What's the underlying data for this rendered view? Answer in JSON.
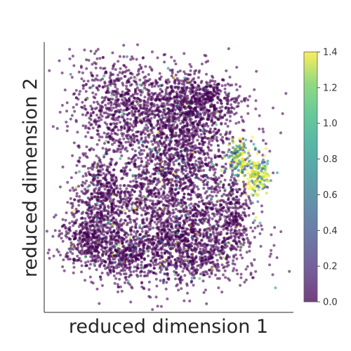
{
  "chart_data": {
    "type": "scatter",
    "xlabel": "reduced dimension 1",
    "ylabel": "reduced dimension 2",
    "x_ticks": [],
    "y_ticks": [],
    "colormap": "viridis",
    "colorbar": {
      "min": 0.0,
      "max": 1.4,
      "ticks": [
        "0.0",
        "0.2",
        "0.4",
        "0.6",
        "0.8",
        "1.0",
        "1.2",
        "1.4"
      ]
    },
    "point_alpha": 0.6,
    "note_colors": {
      "low": "#440154",
      "mid": "#21918c",
      "high": "#fde725"
    },
    "clusters": [
      {
        "cx": 0.27,
        "cy": 0.78,
        "sx": 0.1,
        "sy": 0.1,
        "n": 650,
        "value": "low"
      },
      {
        "cx": 0.55,
        "cy": 0.68,
        "sx": 0.13,
        "sy": 0.12,
        "n": 1100,
        "value": "low"
      },
      {
        "cx": 0.62,
        "cy": 0.8,
        "sx": 0.1,
        "sy": 0.05,
        "n": 450,
        "value": "low"
      },
      {
        "cx": 0.48,
        "cy": 0.38,
        "sx": 0.17,
        "sy": 0.15,
        "n": 1600,
        "value": "low"
      },
      {
        "cx": 0.2,
        "cy": 0.42,
        "sx": 0.06,
        "sy": 0.08,
        "n": 350,
        "value": "low"
      },
      {
        "cx": 0.15,
        "cy": 0.25,
        "sx": 0.07,
        "sy": 0.06,
        "n": 420,
        "value": "low"
      },
      {
        "cx": 0.3,
        "cy": 0.18,
        "sx": 0.07,
        "sy": 0.05,
        "n": 300,
        "value": "low"
      },
      {
        "cx": 0.6,
        "cy": 0.22,
        "sx": 0.12,
        "sy": 0.07,
        "n": 650,
        "value": "low"
      },
      {
        "cx": 0.78,
        "cy": 0.35,
        "sx": 0.04,
        "sy": 0.07,
        "n": 220,
        "value": "low"
      },
      {
        "cx": 0.88,
        "cy": 0.5,
        "sx": 0.025,
        "sy": 0.04,
        "n": 160,
        "value": "mixed"
      },
      {
        "cx": 0.8,
        "cy": 0.57,
        "sx": 0.025,
        "sy": 0.04,
        "n": 120,
        "value": "mixed"
      }
    ]
  }
}
